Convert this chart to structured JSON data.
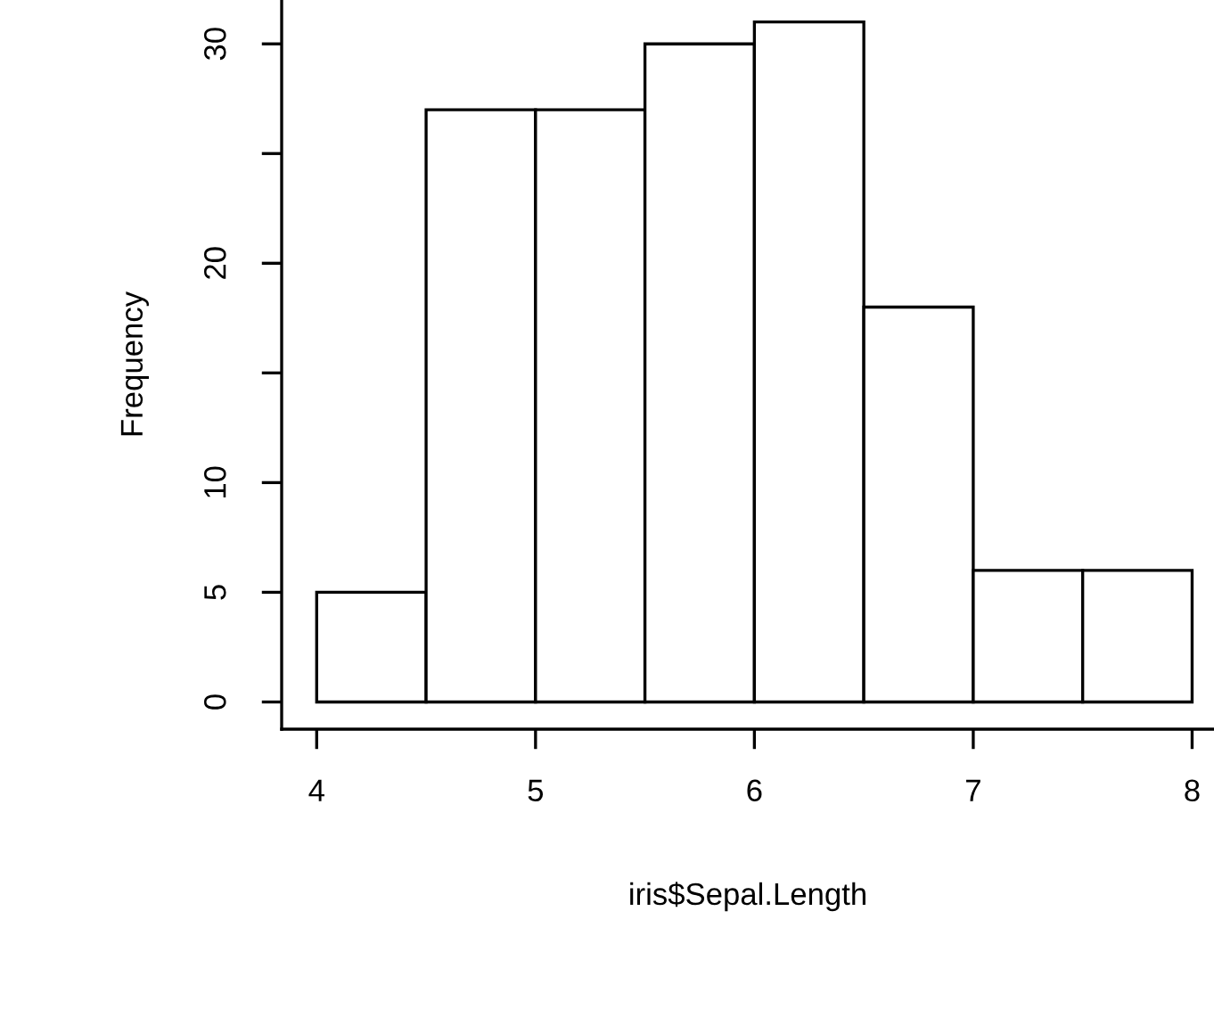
{
  "chart_data": {
    "type": "histogram",
    "xlabel": "iris$Sepal.Length",
    "ylabel": "Frequency",
    "bins": [
      4,
      4.5,
      5,
      5.5,
      6,
      6.5,
      7,
      7.5,
      8
    ],
    "values": [
      5,
      27,
      27,
      30,
      31,
      18,
      6,
      6
    ],
    "color": "#ffffff",
    "xlim": [
      3.84,
      8.1
    ],
    "ylim": [
      -1.24,
      32
    ],
    "xticks": [
      4,
      5,
      6,
      7,
      8
    ],
    "yticks": [
      0,
      5,
      10,
      {
        "value": 15,
        "label": null
      },
      20,
      {
        "value": 25,
        "label": null
      },
      30
    ],
    "grid": false
  }
}
